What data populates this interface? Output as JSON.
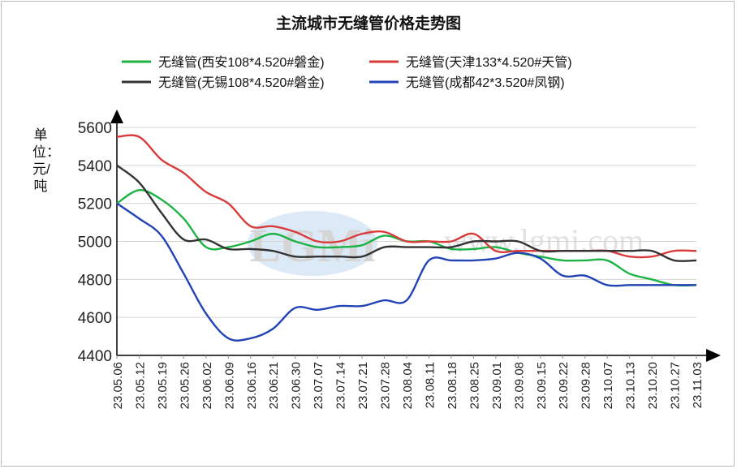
{
  "chart_data": {
    "type": "line",
    "title": "主流城市无缝管价格走势图",
    "ylabel": "单位：元/吨",
    "xlabel": "",
    "ylim": [
      4400,
      5600
    ],
    "yticks": [
      4400,
      4600,
      4800,
      5000,
      5200,
      5400,
      5600
    ],
    "grid": true,
    "legend_position": "top",
    "watermark": {
      "logo": "LGMi",
      "url": "www.lgmi.com"
    },
    "categories": [
      "23.05.06",
      "23.05.12",
      "23.05.19",
      "23.05.26",
      "23.06.02",
      "23.06.09",
      "23.06.16",
      "23.06.21",
      "23.06.30",
      "23.07.07",
      "23.07.14",
      "23.07.21",
      "23.07.28",
      "23.08.04",
      "23.08.11",
      "23.08.18",
      "23.08.25",
      "23.09.01",
      "23.09.08",
      "23.09.15",
      "23.09.22",
      "23.09.28",
      "23.10.07",
      "23.10.13",
      "23.10.20",
      "23.10.27",
      "23.11.03"
    ],
    "series": [
      {
        "name": "无缝管(西安108*4.520#磐金)",
        "color": "#1db344",
        "values": [
          5200,
          5270,
          5220,
          5120,
          4970,
          4970,
          5000,
          5040,
          5000,
          4970,
          4970,
          4980,
          5030,
          5000,
          5000,
          4960,
          4960,
          4970,
          4940,
          4920,
          4900,
          4900,
          4900,
          4830,
          4800,
          4770,
          4770
        ]
      },
      {
        "name": "无缝管(天津133*4.520#天管)",
        "color": "#d93a3a",
        "values": [
          5550,
          5550,
          5430,
          5360,
          5260,
          5200,
          5080,
          5080,
          5050,
          5000,
          5000,
          5040,
          5050,
          5000,
          5000,
          5000,
          5040,
          4950,
          4950,
          4950,
          4950,
          4950,
          4950,
          4920,
          4920,
          4950,
          4950
        ]
      },
      {
        "name": "无缝管(无锡108*4.520#磐金)",
        "color": "#333333",
        "values": [
          5400,
          5310,
          5150,
          5010,
          5010,
          4960,
          4960,
          4950,
          4920,
          4920,
          4920,
          4920,
          4970,
          4970,
          4970,
          4970,
          5000,
          5000,
          5000,
          4950,
          4950,
          4950,
          4950,
          4950,
          4950,
          4900,
          4900
        ]
      },
      {
        "name": "无缝管(成都42*3.520#凤钢)",
        "color": "#2143b5",
        "values": [
          5200,
          5120,
          5030,
          4830,
          4620,
          4490,
          4490,
          4540,
          4650,
          4640,
          4660,
          4660,
          4690,
          4690,
          4900,
          4900,
          4900,
          4910,
          4940,
          4910,
          4820,
          4820,
          4770,
          4770,
          4770,
          4770,
          4770
        ]
      }
    ]
  }
}
